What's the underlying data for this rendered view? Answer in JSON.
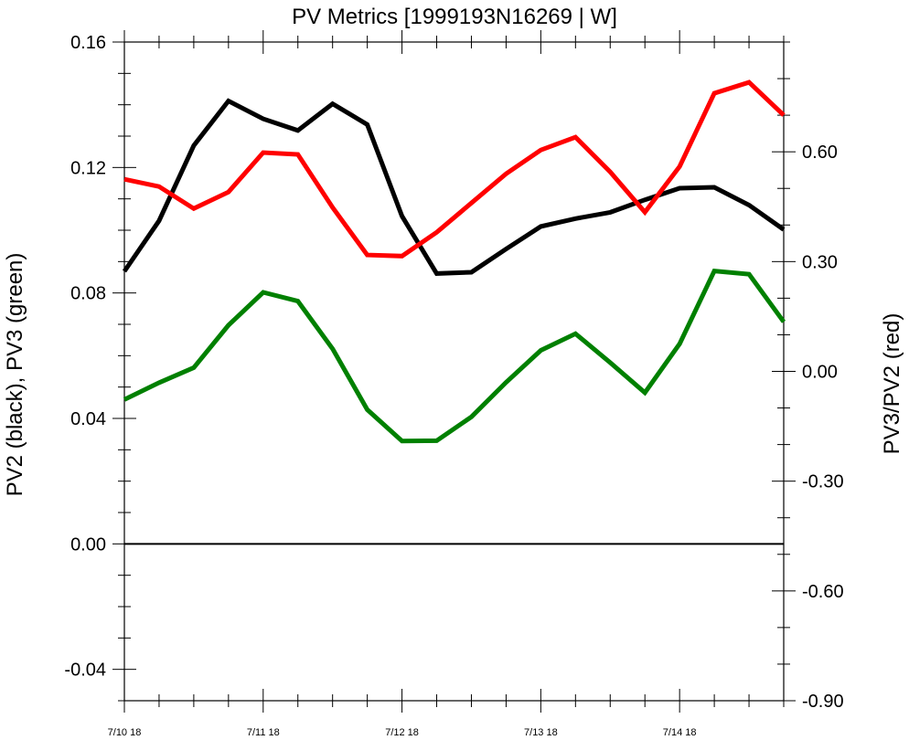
{
  "chart_data": {
    "type": "line",
    "title": "PV Metrics [1999193N16269 | W]",
    "ylabel": "PV2 (black), PV3 (green)",
    "ylabel_right": "PV3/PV2 (red)",
    "x": [
      0,
      1,
      2,
      3,
      4,
      5,
      6,
      7,
      8,
      9,
      10,
      11,
      12,
      13,
      14,
      15,
      16,
      17,
      18,
      19
    ],
    "x_tick_labels": [
      "7/10 18",
      "7/11 18",
      "7/12 18",
      "7/13 18",
      "7/14 18"
    ],
    "x_tick_positions": [
      0,
      4,
      8,
      12,
      16
    ],
    "xlim": [
      0,
      19
    ],
    "ylim": [
      -0.05,
      0.16
    ],
    "y_ticks": [
      "0.16",
      "0.12",
      "0.08",
      "0.04",
      "0.00",
      "-0.04"
    ],
    "y_tick_values": [
      0.16,
      0.12,
      0.08,
      0.04,
      0.0,
      -0.04
    ],
    "ylim_right": [
      -0.9,
      0.9
    ],
    "y_ticks_right": [
      "0.60",
      "0.30",
      "0.00",
      "-0.30",
      "-0.60",
      "-0.90"
    ],
    "y_tick_values_right": [
      0.6,
      0.3,
      0.0,
      -0.3,
      -0.6,
      -0.9
    ],
    "zero_line": 0.0,
    "series": [
      {
        "color": "#000000",
        "axis": "left",
        "values": [
          0.0869,
          0.103,
          0.127,
          0.1412,
          0.1355,
          0.1318,
          0.1403,
          0.1337,
          0.1045,
          0.0862,
          0.0866,
          0.094,
          0.1012,
          0.1037,
          0.1057,
          0.1097,
          0.1134,
          0.1137,
          0.108,
          0.1002
        ]
      },
      {
        "color": "#008000",
        "axis": "left",
        "values": [
          0.046,
          0.0514,
          0.0562,
          0.0697,
          0.0802,
          0.0774,
          0.0622,
          0.0428,
          0.0328,
          0.0329,
          0.0405,
          0.0515,
          0.0617,
          0.067,
          0.0578,
          0.0482,
          0.0638,
          0.087,
          0.086,
          0.0708
        ]
      },
      {
        "color": "#ff0000",
        "axis": "right",
        "values": [
          0.525,
          0.505,
          0.445,
          0.49,
          0.598,
          0.593,
          0.448,
          0.318,
          0.315,
          0.38,
          0.46,
          0.54,
          0.605,
          0.64,
          0.545,
          0.435,
          0.56,
          0.76,
          0.79,
          0.7
        ]
      }
    ]
  }
}
